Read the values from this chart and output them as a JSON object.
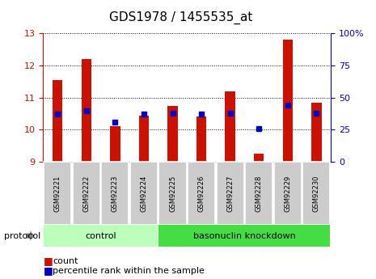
{
  "title": "GDS1978 / 1455535_at",
  "samples": [
    "GSM92221",
    "GSM92222",
    "GSM92223",
    "GSM92224",
    "GSM92225",
    "GSM92226",
    "GSM92227",
    "GSM92228",
    "GSM92229",
    "GSM92230"
  ],
  "counts": [
    11.55,
    12.2,
    10.1,
    10.45,
    10.75,
    10.42,
    11.2,
    9.25,
    12.82,
    10.85
  ],
  "percentile_ranks": [
    37,
    40,
    31,
    37,
    38,
    37,
    38,
    26,
    44,
    38
  ],
  "ylim_left": [
    9,
    13
  ],
  "ylim_right": [
    0,
    100
  ],
  "yticks_left": [
    9,
    10,
    11,
    12,
    13
  ],
  "yticks_right": [
    0,
    25,
    50,
    75,
    100
  ],
  "bar_color": "#cc1100",
  "dot_color": "#0000cc",
  "control_group": [
    0,
    1,
    2,
    3
  ],
  "knockdown_group": [
    4,
    5,
    6,
    7,
    8,
    9
  ],
  "control_label": "control",
  "knockdown_label": "basonuclin knockdown",
  "protocol_label": "protocol",
  "legend_count": "count",
  "legend_percentile": "percentile rank within the sample",
  "control_bg": "#bbffbb",
  "knockdown_bg": "#44dd44",
  "tick_label_bg": "#cccccc",
  "bar_width": 0.35,
  "title_fontsize": 11,
  "axis_fontsize": 8,
  "sample_fontsize": 6,
  "legend_fontsize": 8
}
